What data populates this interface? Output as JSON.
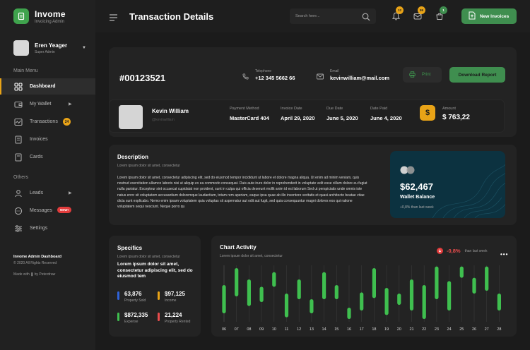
{
  "app": {
    "name": "Invome",
    "tagline": "Invoicing Admin"
  },
  "user": {
    "name": "Eren Yeager",
    "role": "Super Admin"
  },
  "sidebar": {
    "main_menu_label": "Main Menu",
    "main_items": [
      {
        "label": "Dashboard",
        "icon": "dashboard-icon",
        "active": true
      },
      {
        "label": "My Wallet",
        "icon": "wallet-icon",
        "has_arrow": true
      },
      {
        "label": "Transactions",
        "icon": "transactions-icon",
        "badge": "24"
      },
      {
        "label": "Invoices",
        "icon": "invoice-icon"
      },
      {
        "label": "Cards",
        "icon": "card-icon"
      }
    ],
    "others_label": "Others",
    "other_items": [
      {
        "label": "Leads",
        "icon": "user-icon",
        "has_arrow": true
      },
      {
        "label": "Messages",
        "icon": "chat-icon",
        "badge": "NEW!"
      },
      {
        "label": "Settings",
        "icon": "settings-icon"
      }
    ],
    "footer_title": "Invome Admin Dashboard",
    "footer_copyright": "© 2020 All Rights Reserved",
    "footer_made": "Made with ❚ by Peterdraw"
  },
  "header": {
    "title": "Transaction Details",
    "search_placeholder": "Search here...",
    "notification_count": "12",
    "messages_count": "99",
    "cart_count": "1",
    "new_invoice_label": "New Invoices"
  },
  "transaction": {
    "invoice_number": "#00123521",
    "telephone_label": "Telephone",
    "telephone": "+12 345 5662 66",
    "email_label": "Email",
    "email": "kevinwilliam@mail.com",
    "print_label": "Print",
    "download_label": "Download Report",
    "customer_name": "Kevin William",
    "customer_email": "@kevinwilliam",
    "payment_method_label": "Payment Method",
    "payment_method": "MasterCard 404",
    "invoice_date_label": "Invoice Date",
    "invoice_date": "April 29, 2020",
    "due_date_label": "Due Date",
    "due_date": "June 5, 2020",
    "date_paid_label": "Date Paid",
    "date_paid": "June 4, 2020",
    "amount_label": "Amount",
    "amount": "$ 763,22",
    "currency_symbol": "$"
  },
  "description": {
    "title": "Description",
    "subtitle": "Lorem ipsum dolor sit amet, consectetur",
    "body": "Lorem ipsum dolor sit amet, consectetur adipiscing elit, sed do eiusmod tempor incididunt ut labore et dolore magna aliqua. Ut enim ad minim veniam, quis nostrud exercitation ullamco laboris nisi ut aliquip ex ea commodo consequat. Duis aute irure dolor in reprehenderit in voluptate velit esse cillum dolore eu fugiat nulla pariatur. Excepteur sint occaecat cupidatat non proident, sunt in culpa qui officia deserunt mollit anim id est laborum Sed ut perspiciatis unde omnis iste natus error sit voluptatem accusantium doloremque laudantium, totam rem aperiam, eaque ipsa quae ab illo inventore veritatis et quasi architecto beatae vitae dicta sunt explicabo. Nemo enim ipsam voluptatem quia voluptas sit aspernatur aut odit aut fugit, sed quia consequuntur magni dolores eos qui ratione voluptatem sequi nesciunt. Neque porro qu"
  },
  "wallet": {
    "amount": "$62,467",
    "label": "Wallet Balance",
    "change": "+0,8% than last week"
  },
  "specifics": {
    "title": "Specifics",
    "subtitle": "Lorem ipsum dolor sit amet, consectetur",
    "text": "Lorem ipsum dolor sit amet, consectetur adipiscing elit, sed do eiusmod tem",
    "stats": [
      {
        "value": "63,876",
        "label": "Property Sold",
        "color": "#2f62d8"
      },
      {
        "value": "$97,125",
        "label": "Income",
        "color": "#e8a317"
      },
      {
        "value": "$872,335",
        "label": "Expense",
        "color": "#3fbf4f"
      },
      {
        "value": "21,224",
        "label": "Property Rented",
        "color": "#e84c4c"
      }
    ]
  },
  "chart_activity": {
    "title": "Chart Activity",
    "subtitle": "Lorem ipsum dolor sit amet, consectetur",
    "change": "-0,8%",
    "change_label": "than last week"
  },
  "colors": {
    "accent_green": "#3f8e4f",
    "accent_orange": "#e8a317",
    "accent_red": "#e23c3c",
    "wallet_card": "#0c3240"
  },
  "chart_data": {
    "type": "bar",
    "title": "Chart Activity",
    "categories": [
      "06",
      "07",
      "08",
      "09",
      "10",
      "11",
      "12",
      "13",
      "14",
      "15",
      "16",
      "17",
      "18",
      "19",
      "20",
      "21",
      "22",
      "23",
      "24",
      "25",
      "26",
      "27",
      "28"
    ],
    "ranges": [
      [
        0.15,
        0.65
      ],
      [
        0.45,
        0.95
      ],
      [
        0.28,
        0.75
      ],
      [
        0.35,
        0.62
      ],
      [
        0.62,
        0.88
      ],
      [
        0.08,
        0.5
      ],
      [
        0.4,
        0.75
      ],
      [
        0.15,
        0.4
      ],
      [
        0.4,
        0.88
      ],
      [
        0.4,
        0.65
      ],
      [
        0.05,
        0.25
      ],
      [
        0.2,
        0.52
      ],
      [
        0.42,
        0.95
      ],
      [
        0.12,
        0.6
      ],
      [
        0.3,
        0.5
      ],
      [
        0.2,
        0.75
      ],
      [
        0.05,
        0.65
      ],
      [
        0.4,
        0.98
      ],
      [
        0.2,
        0.72
      ],
      [
        0.78,
        0.98
      ],
      [
        0.5,
        0.78
      ],
      [
        0.55,
        0.98
      ],
      [
        0.2,
        0.5
      ]
    ],
    "highlight_index": 0,
    "grid": true
  }
}
